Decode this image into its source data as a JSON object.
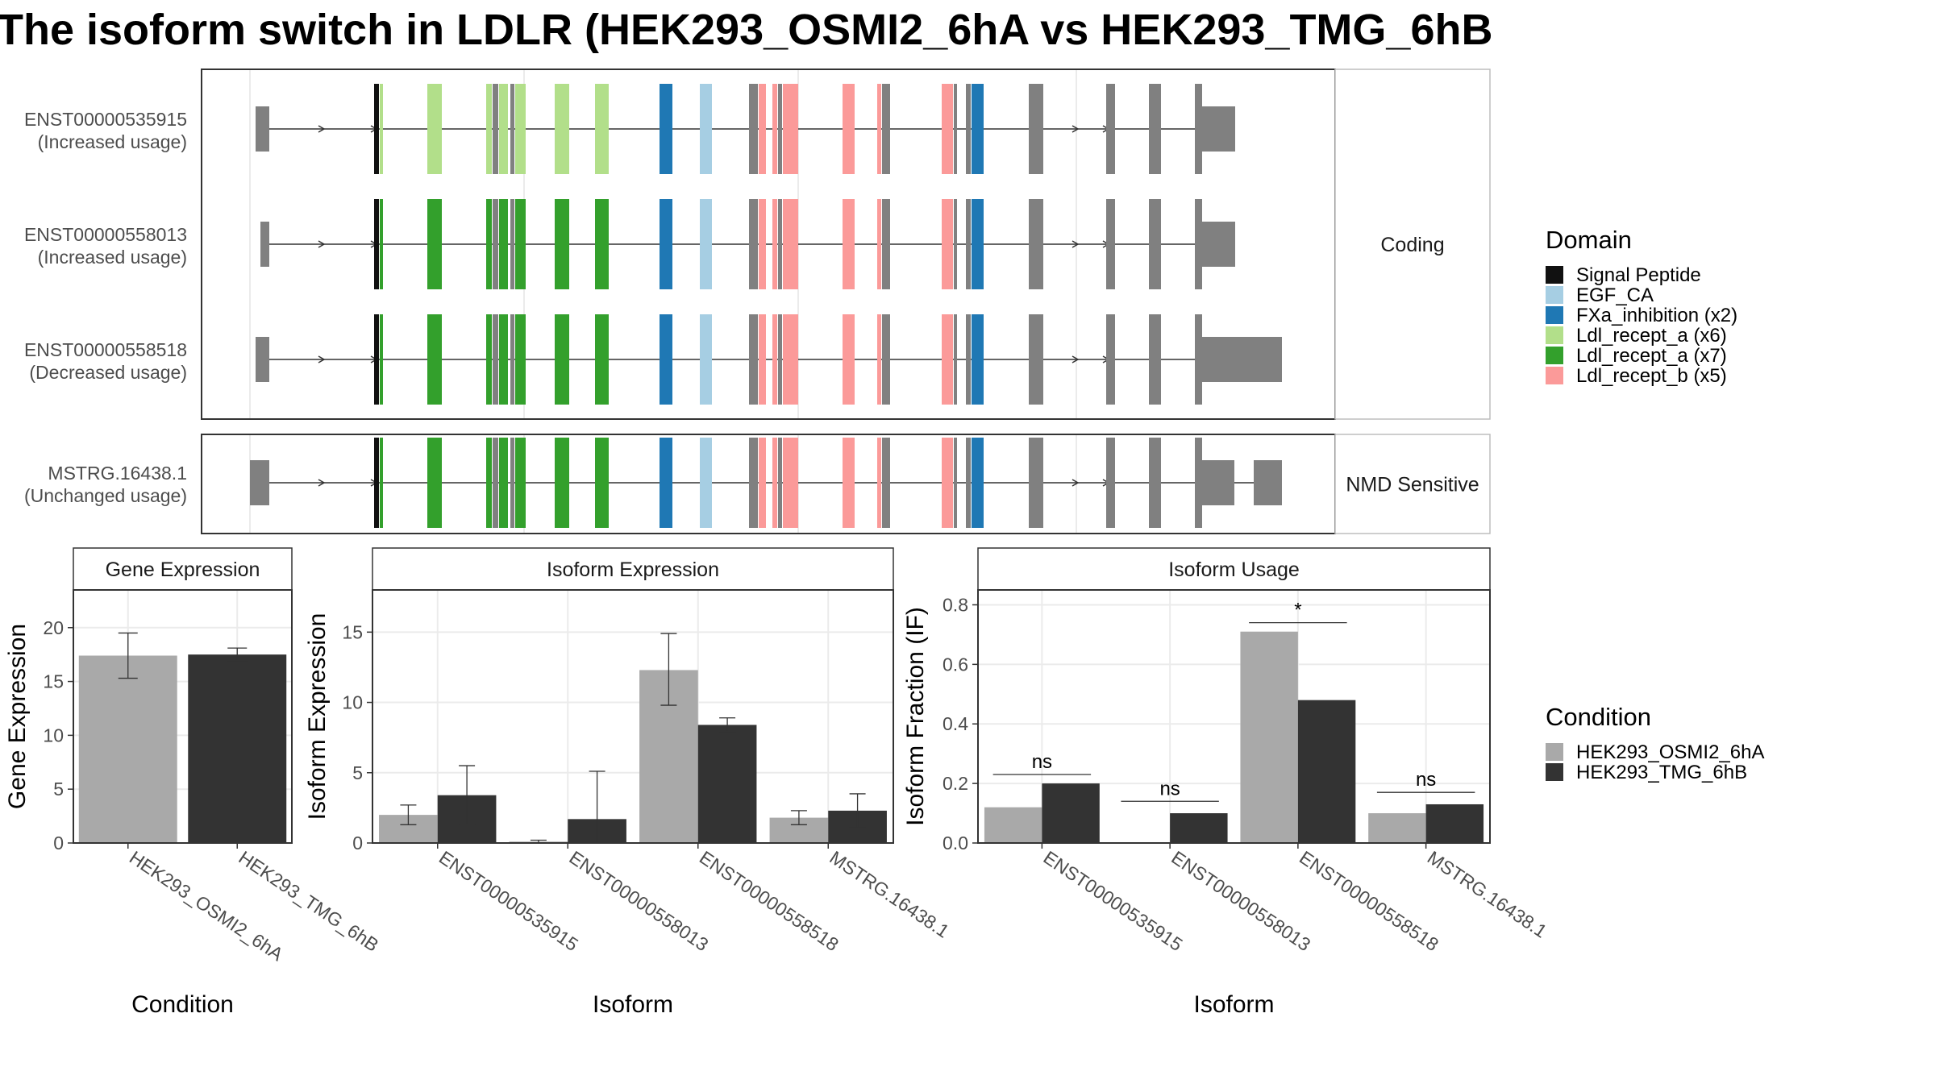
{
  "title": "The isoform switch in LDLR (HEK293_OSMI2_6hA vs HEK293_TMG_6hB",
  "transcript_panel": {
    "facets": [
      "Coding",
      "NMD Sensitive"
    ],
    "transcripts": [
      {
        "id": "ENST00000535915",
        "usage": "(Increased usage)",
        "facet": 0
      },
      {
        "id": "ENST00000558013",
        "usage": "(Increased usage)",
        "facet": 0
      },
      {
        "id": "ENST00000558518",
        "usage": "(Decreased usage)",
        "facet": 0
      },
      {
        "id": "MSTRG.16438.1",
        "usage": "(Unchanged usage)",
        "facet": 1
      }
    ]
  },
  "domain_legend": {
    "title": "Domain",
    "items": [
      {
        "label": "Signal Peptide",
        "color": "#111111"
      },
      {
        "label": "EGF_CA",
        "color": "#a6cee3"
      },
      {
        "label": "FXa_inhibition (x2)",
        "color": "#1f78b4"
      },
      {
        "label": "Ldl_recept_a (x6)",
        "color": "#b2df8a"
      },
      {
        "label": "Ldl_recept_a (x7)",
        "color": "#33a02c"
      },
      {
        "label": "Ldl_recept_b (x5)",
        "color": "#fb9a99"
      }
    ]
  },
  "condition_legend": {
    "title": "Condition",
    "items": [
      {
        "label": "HEK293_OSMI2_6hA",
        "color": "#a9a9a9"
      },
      {
        "label": "HEK293_TMG_6hB",
        "color": "#333333"
      }
    ]
  },
  "chart_data": [
    {
      "type": "bar",
      "title": "Gene Expression",
      "xlabel": "Condition",
      "ylabel": "Gene Expression",
      "categories": [
        "HEK293_OSMI2_6hA",
        "HEK293_TMG_6hB"
      ],
      "ylim": [
        0,
        23.5
      ],
      "yticks": [
        0,
        5,
        10,
        15,
        20
      ],
      "series": [
        {
          "name": "HEK293_OSMI2_6hA",
          "values": [
            17.4,
            null
          ]
        },
        {
          "name": "HEK293_TMG_6hB",
          "values": [
            null,
            17.5
          ]
        }
      ],
      "errors": [
        [
          15.3,
          19.5
        ],
        [
          16.9,
          18.1
        ]
      ]
    },
    {
      "type": "bar",
      "title": "Isoform Expression",
      "xlabel": "Isoform",
      "ylabel": "Isoform Expression",
      "categories": [
        "ENST00000535915",
        "ENST00000558013",
        "ENST00000558518",
        "MSTRG.16438.1"
      ],
      "ylim": [
        0,
        18
      ],
      "yticks": [
        0,
        5,
        10,
        15
      ],
      "series": [
        {
          "name": "HEK293_OSMI2_6hA",
          "values": [
            2.0,
            0.1,
            12.3,
            1.8
          ],
          "errors": [
            [
              1.3,
              2.7
            ],
            [
              0.0,
              0.2
            ],
            [
              9.8,
              14.9
            ],
            [
              1.3,
              2.3
            ]
          ]
        },
        {
          "name": "HEK293_TMG_6hB",
          "values": [
            3.4,
            1.7,
            8.4,
            2.3
          ],
          "errors": [
            [
              1.3,
              5.5
            ],
            [
              0.0,
              5.1
            ],
            [
              7.9,
              8.9
            ],
            [
              1.1,
              3.5
            ]
          ]
        }
      ]
    },
    {
      "type": "bar",
      "title": "Isoform Usage",
      "xlabel": "Isoform",
      "ylabel": "Isoform Fraction (IF)",
      "categories": [
        "ENST00000535915",
        "ENST00000558013",
        "ENST00000558518",
        "MSTRG.16438.1"
      ],
      "ylim": [
        0,
        0.85
      ],
      "yticks": [
        0.0,
        0.2,
        0.4,
        0.6,
        0.8
      ],
      "series": [
        {
          "name": "HEK293_OSMI2_6hA",
          "values": [
            0.12,
            0.0,
            0.71,
            0.1
          ]
        },
        {
          "name": "HEK293_TMG_6hB",
          "values": [
            0.2,
            0.1,
            0.48,
            0.13
          ]
        }
      ],
      "significance": [
        {
          "label": "ns",
          "y": 0.23
        },
        {
          "label": "ns",
          "y": 0.14
        },
        {
          "label": "*",
          "y": 0.74
        },
        {
          "label": "ns",
          "y": 0.17
        }
      ]
    }
  ]
}
